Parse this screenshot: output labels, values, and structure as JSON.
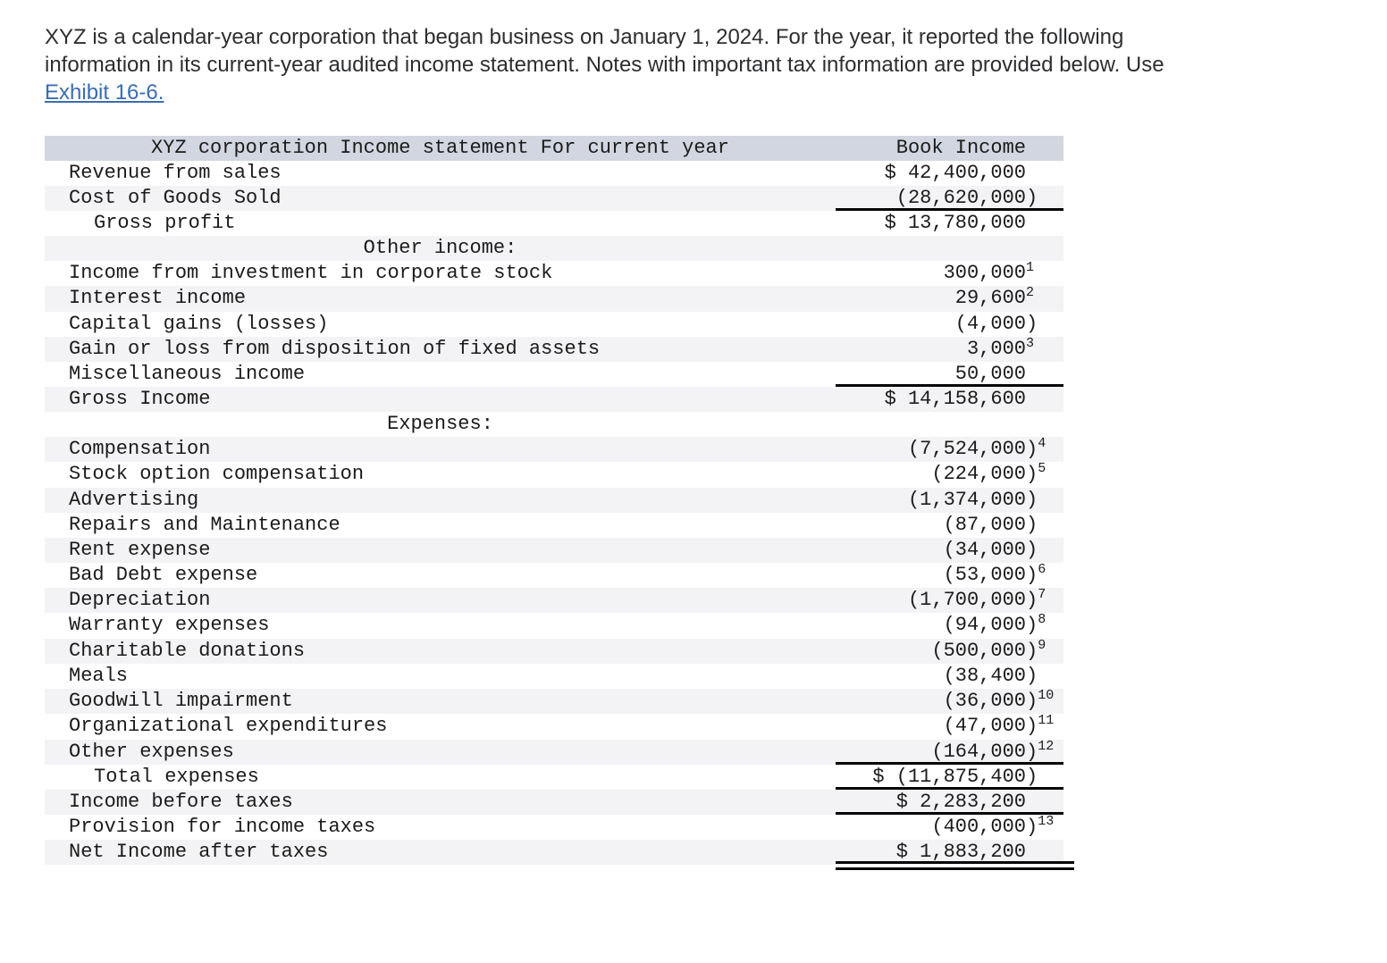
{
  "intro": {
    "line1": "XYZ is a calendar-year corporation that began business on January 1, 2024. For the year, it reported the following",
    "line2": "information in its current-year audited income statement. Notes with important tax information are provided below. Use",
    "link_text": "Exhibit 16-6."
  },
  "table": {
    "header": {
      "title": "XYZ corporation Income statement For current year",
      "amount_header": "Book Income"
    },
    "rows": [
      {
        "label": "Revenue from sales",
        "amount": "$ 42,400,000"
      },
      {
        "label": "Cost of Goods Sold",
        "amount": "(28,620,000)",
        "underline": "single"
      },
      {
        "label": "Gross profit",
        "amount": "$ 13,780,000",
        "indent": true
      },
      {
        "label": "Other income:",
        "amount": "",
        "section": true
      },
      {
        "label": "Income from investment in corporate stock",
        "amount": "300,000",
        "note": "1"
      },
      {
        "label": "Interest income",
        "amount": "29,600",
        "note": "2"
      },
      {
        "label": "Capital gains (losses)",
        "amount": "(4,000)"
      },
      {
        "label": "Gain or loss from disposition of fixed assets",
        "amount": "3,000",
        "note": "3"
      },
      {
        "label": "Miscellaneous income",
        "amount": "50,000",
        "underline": "single"
      },
      {
        "label": "Gross Income",
        "amount": "$ 14,158,600"
      },
      {
        "label": "Expenses:",
        "amount": "",
        "section": true
      },
      {
        "label": "Compensation",
        "amount": "(7,524,000)",
        "note": "4"
      },
      {
        "label": "Stock option compensation",
        "amount": "(224,000)",
        "note": "5"
      },
      {
        "label": "Advertising",
        "amount": "(1,374,000)"
      },
      {
        "label": "Repairs and Maintenance",
        "amount": "(87,000)"
      },
      {
        "label": "Rent expense",
        "amount": "(34,000)"
      },
      {
        "label": "Bad Debt expense",
        "amount": "(53,000)",
        "note": "6"
      },
      {
        "label": "Depreciation",
        "amount": "(1,700,000)",
        "note": "7"
      },
      {
        "label": "Warranty expenses",
        "amount": "(94,000)",
        "note": "8"
      },
      {
        "label": "Charitable donations",
        "amount": "(500,000)",
        "note": "9"
      },
      {
        "label": "Meals",
        "amount": "(38,400)"
      },
      {
        "label": "Goodwill impairment",
        "amount": "(36,000)",
        "note": "10"
      },
      {
        "label": "Organizational expenditures",
        "amount": "(47,000)",
        "note": "11"
      },
      {
        "label": "Other expenses",
        "amount": "(164,000)",
        "note": "12",
        "underline": "single"
      },
      {
        "label": "Total expenses",
        "amount": "$ (11,875,400)",
        "indent": true,
        "underline": "single"
      },
      {
        "label": "Income before taxes",
        "amount": "$ 2,283,200",
        "underline": "single"
      },
      {
        "label": "Provision for income taxes",
        "amount": "(400,000)",
        "note": "13"
      },
      {
        "label": "Net Income after taxes",
        "amount": "$ 1,883,200",
        "underline": "double"
      }
    ]
  },
  "colors": {
    "header_bg": "#d1d6e0",
    "stripe_bg": "#f3f3f5",
    "link": "#3b6cb0",
    "rule": "#050505",
    "table_text": "#1b1b1b",
    "body_text": "#2d2e30"
  }
}
